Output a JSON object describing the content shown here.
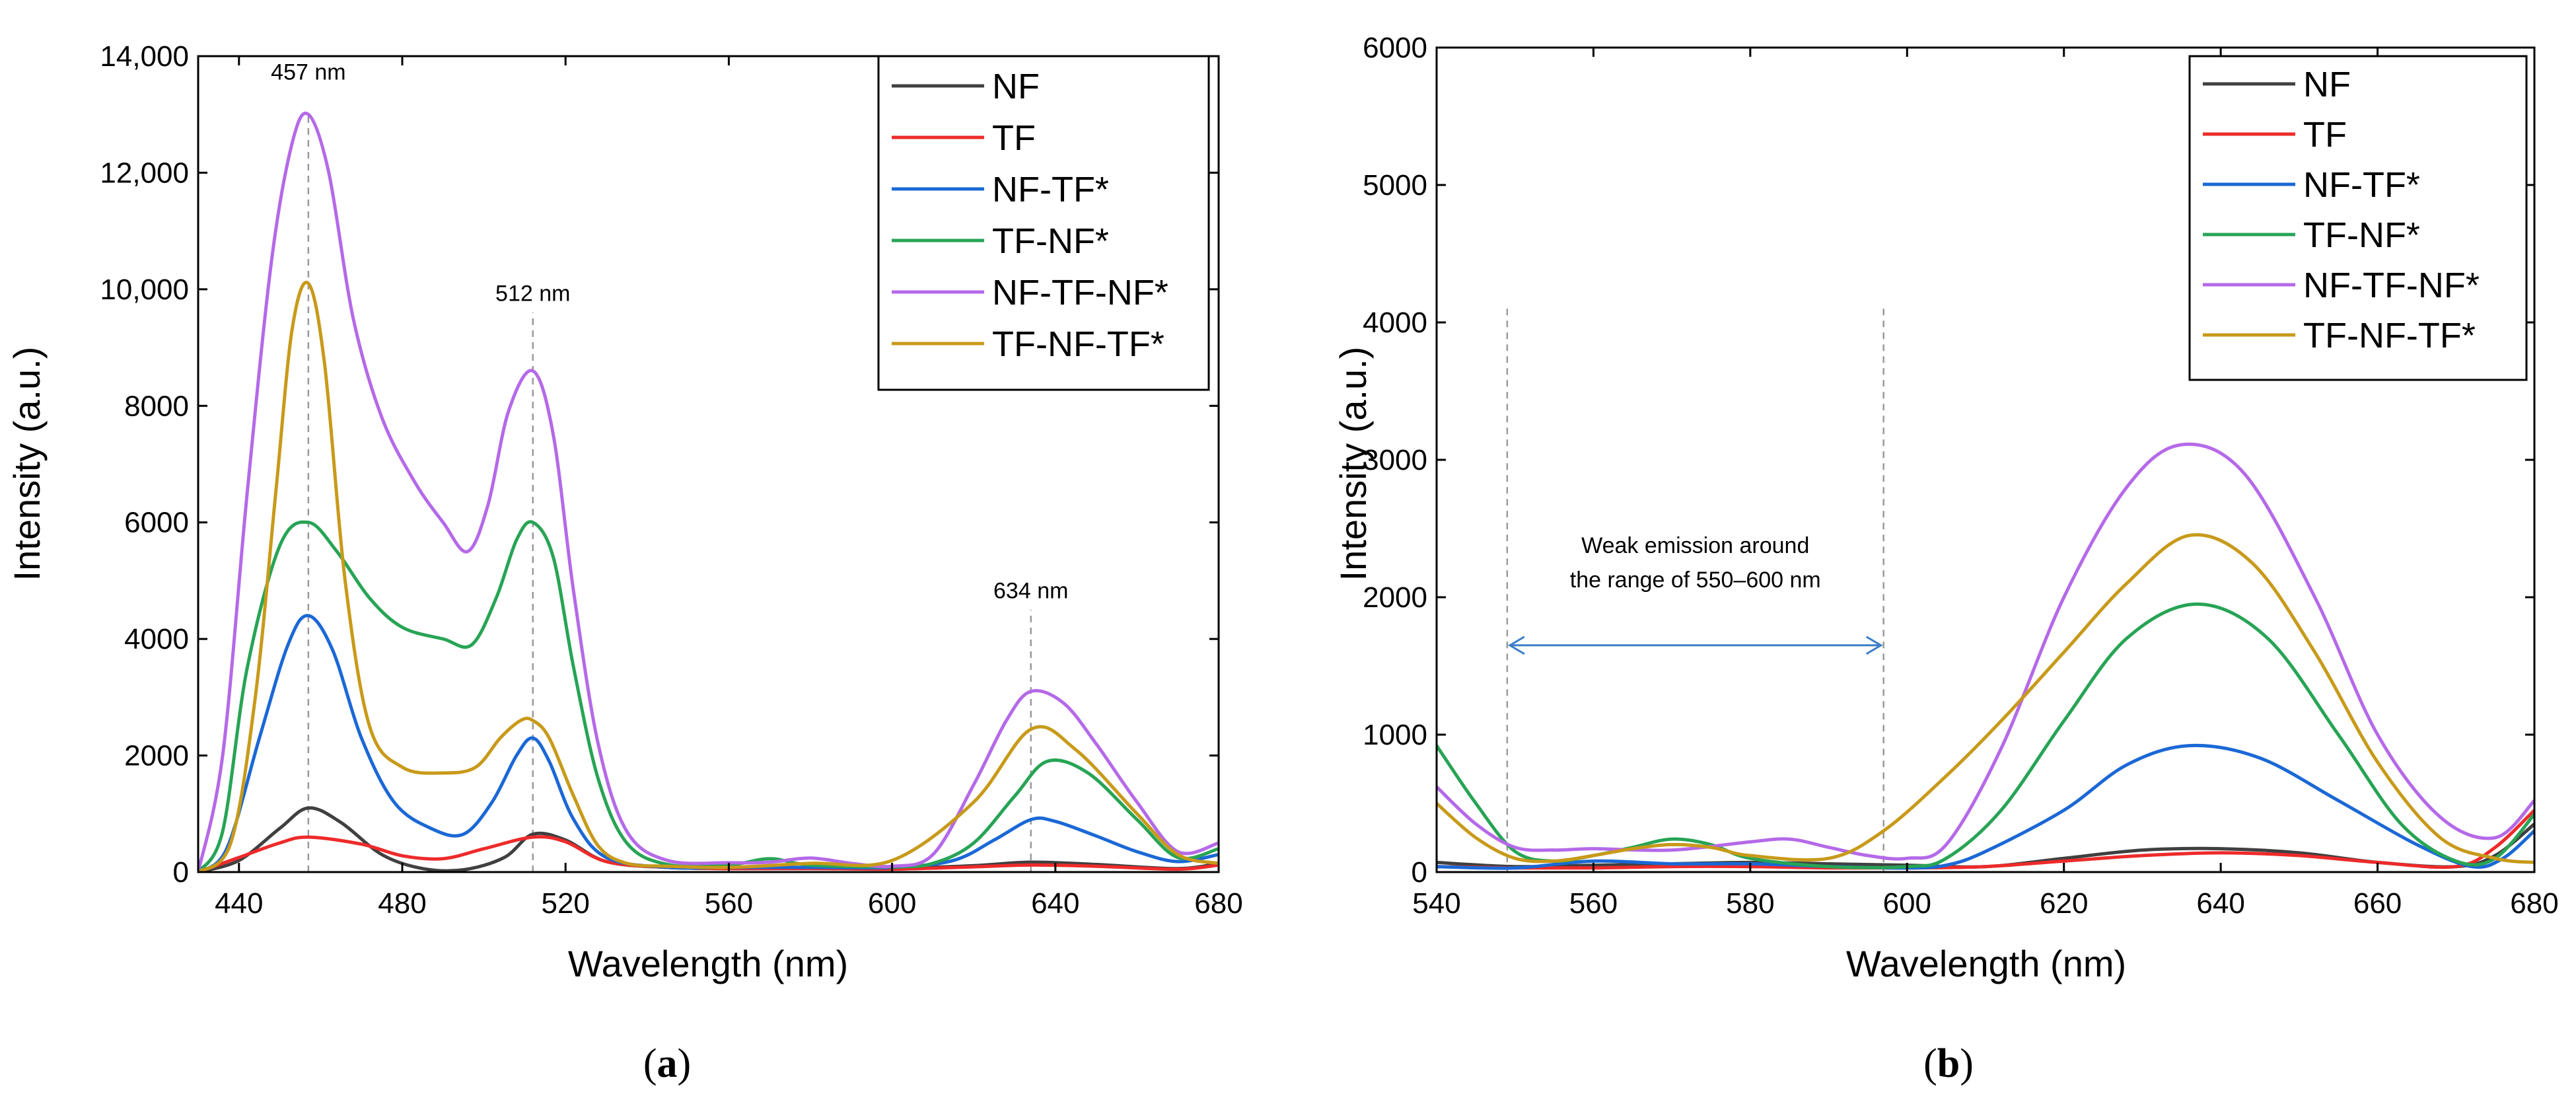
{
  "chart_data": [
    {
      "id": "a",
      "type": "line",
      "panel_label": [
        "(",
        "a",
        ")"
      ],
      "xlabel": "Wavelength (nm)",
      "ylabel": "Intensity (a.u.)",
      "xlim": [
        430,
        680
      ],
      "ylim": [
        0,
        14000
      ],
      "x_ticks": [
        440,
        480,
        520,
        560,
        600,
        640,
        680
      ],
      "y_ticks": [
        0,
        2000,
        4000,
        6000,
        8000,
        10000,
        12000,
        14000
      ],
      "y_tick_labels": [
        "0",
        "2000",
        "4000",
        "6000",
        "8000",
        "10,000",
        "12,000",
        "14,000"
      ],
      "legend_position": "top-right",
      "annotations": [
        {
          "text": "457 nm",
          "x": 457,
          "label_y": 13600,
          "line_from": 0,
          "line_to": 13000
        },
        {
          "text": "512 nm",
          "x": 512,
          "label_y": 9800,
          "line_from": 0,
          "line_to": 9600
        },
        {
          "text": "634 nm",
          "x": 634,
          "label_y": 4700,
          "line_from": 0,
          "line_to": 4500
        }
      ],
      "series": [
        {
          "name": "NF",
          "color": "#404040",
          "x": [
            430,
            440,
            450,
            457,
            465,
            475,
            485,
            495,
            505,
            512,
            520,
            530,
            545,
            560,
            580,
            600,
            620,
            634,
            650,
            670,
            680
          ],
          "y": [
            0,
            200,
            750,
            1100,
            850,
            300,
            60,
            40,
            250,
            650,
            550,
            180,
            80,
            60,
            60,
            60,
            110,
            170,
            130,
            60,
            150
          ]
        },
        {
          "name": "TF",
          "color": "#ee2a2a",
          "x": [
            430,
            440,
            450,
            457,
            470,
            480,
            490,
            500,
            512,
            520,
            530,
            545,
            560,
            580,
            600,
            620,
            634,
            650,
            670,
            680
          ],
          "y": [
            0,
            250,
            500,
            600,
            480,
            280,
            230,
            400,
            600,
            520,
            180,
            80,
            60,
            60,
            50,
            90,
            120,
            100,
            50,
            120
          ]
        },
        {
          "name": "NF-TF*",
          "color": "#1b68d6",
          "x": [
            430,
            437,
            445,
            452,
            457,
            463,
            470,
            478,
            487,
            495,
            502,
            508,
            512,
            516,
            522,
            530,
            545,
            560,
            580,
            600,
            615,
            625,
            634,
            640,
            650,
            660,
            670,
            680
          ],
          "y": [
            0,
            400,
            2300,
            3900,
            4400,
            3800,
            2300,
            1200,
            750,
            650,
            1200,
            2000,
            2300,
            1900,
            900,
            250,
            80,
            80,
            80,
            80,
            200,
            550,
            900,
            870,
            620,
            350,
            180,
            300
          ]
        },
        {
          "name": "TF-NF*",
          "color": "#27a455",
          "x": [
            430,
            436,
            442,
            450,
            457,
            464,
            472,
            480,
            490,
            497,
            503,
            508,
            512,
            517,
            522,
            528,
            535,
            545,
            560,
            570,
            580,
            600,
            610,
            620,
            630,
            638,
            648,
            660,
            670,
            680
          ],
          "y": [
            0,
            700,
            3500,
            5600,
            6000,
            5500,
            4700,
            4200,
            4000,
            3900,
            4700,
            5700,
            6000,
            5400,
            3500,
            1600,
            500,
            130,
            120,
            230,
            120,
            90,
            150,
            500,
            1300,
            1900,
            1700,
            900,
            250,
            400
          ]
        },
        {
          "name": "NF-TF-NF*",
          "color": "#b569e8",
          "x": [
            430,
            436,
            442,
            448,
            453,
            457,
            462,
            468,
            475,
            483,
            490,
            496,
            501,
            506,
            512,
            517,
            522,
            528,
            535,
            545,
            560,
            570,
            580,
            590,
            600,
            610,
            620,
            628,
            634,
            642,
            650,
            660,
            670,
            680
          ],
          "y": [
            0,
            2000,
            6500,
            10500,
            12500,
            13000,
            12000,
            9500,
            7800,
            6700,
            6000,
            5500,
            6300,
            7900,
            8600,
            7500,
            4800,
            2200,
            700,
            200,
            160,
            170,
            240,
            150,
            100,
            300,
            1500,
            2600,
            3100,
            2900,
            2200,
            1200,
            350,
            500
          ]
        },
        {
          "name": "TF-NF-TF*",
          "color": "#c89a1a",
          "x": [
            430,
            438,
            444,
            449,
            453,
            457,
            461,
            466,
            472,
            480,
            490,
            498,
            504,
            509,
            512,
            516,
            522,
            528,
            535,
            545,
            560,
            580,
            600,
            620,
            634,
            645,
            660,
            670,
            680
          ],
          "y": [
            0,
            500,
            3000,
            6500,
            9300,
            10100,
            8700,
            5000,
            2500,
            1800,
            1700,
            1800,
            2300,
            2600,
            2600,
            2300,
            1300,
            450,
            150,
            100,
            80,
            150,
            200,
            1200,
            2450,
            2100,
            1000,
            300,
            150
          ]
        }
      ]
    },
    {
      "id": "b",
      "type": "line",
      "panel_label": [
        "(",
        "b",
        ")"
      ],
      "xlabel": "Wavelength (nm)",
      "ylabel": "Intensity (a.u.)",
      "xlim": [
        540,
        680
      ],
      "ylim": [
        0,
        6000
      ],
      "x_ticks": [
        540,
        560,
        580,
        600,
        620,
        640,
        660,
        680
      ],
      "y_ticks": [
        0,
        1000,
        2000,
        3000,
        4000,
        5000,
        6000
      ],
      "y_tick_labels": [
        "0",
        "1000",
        "2000",
        "3000",
        "4000",
        "5000",
        "6000"
      ],
      "legend_position": "top-right",
      "range_annotation": {
        "lines": [
          "Weak emission around",
          "the range of 550–600 nm"
        ],
        "x_start": 549,
        "x_end": 597,
        "arrow_y": 1650,
        "line_top": 4100
      },
      "series": [
        {
          "name": "NF",
          "color": "#404040",
          "x": [
            540,
            550,
            560,
            570,
            580,
            590,
            600,
            610,
            620,
            630,
            640,
            650,
            660,
            670,
            675,
            680
          ],
          "y": [
            70,
            40,
            50,
            60,
            70,
            60,
            50,
            40,
            100,
            160,
            170,
            140,
            70,
            40,
            120,
            350
          ]
        },
        {
          "name": "TF",
          "color": "#ee2a2a",
          "x": [
            540,
            550,
            560,
            570,
            580,
            590,
            600,
            610,
            620,
            630,
            640,
            650,
            660,
            670,
            675,
            680
          ],
          "y": [
            40,
            30,
            30,
            40,
            40,
            30,
            30,
            40,
            80,
            120,
            140,
            120,
            70,
            40,
            180,
            450
          ]
        },
        {
          "name": "NF-TF*",
          "color": "#1b68d6",
          "x": [
            540,
            550,
            560,
            570,
            580,
            590,
            600,
            605,
            610,
            620,
            628,
            636,
            645,
            655,
            665,
            672,
            676,
            680
          ],
          "y": [
            40,
            30,
            80,
            60,
            60,
            40,
            30,
            50,
            150,
            450,
            780,
            920,
            830,
            520,
            200,
            40,
            100,
            300
          ]
        },
        {
          "name": "TF-NF*",
          "color": "#27a455",
          "x": [
            540,
            545,
            550,
            555,
            560,
            565,
            570,
            575,
            580,
            590,
            600,
            605,
            612,
            620,
            628,
            637,
            646,
            655,
            663,
            670,
            675,
            680
          ],
          "y": [
            920,
            500,
            150,
            80,
            120,
            180,
            240,
            200,
            100,
            40,
            40,
            100,
            450,
            1100,
            1700,
            1950,
            1700,
            1000,
            350,
            80,
            100,
            420
          ]
        },
        {
          "name": "NF-TF-NF*",
          "color": "#b569e8",
          "x": [
            540,
            545,
            550,
            555,
            560,
            570,
            580,
            585,
            590,
            595,
            600,
            605,
            612,
            620,
            628,
            635,
            643,
            652,
            660,
            668,
            675,
            680
          ],
          "y": [
            620,
            350,
            180,
            160,
            170,
            160,
            220,
            240,
            180,
            120,
            100,
            200,
            900,
            2000,
            2800,
            3110,
            2900,
            2000,
            1000,
            400,
            250,
            520
          ]
        },
        {
          "name": "TF-NF-TF*",
          "color": "#c89a1a",
          "x": [
            540,
            545,
            550,
            555,
            560,
            565,
            570,
            575,
            580,
            590,
            597,
            605,
            612,
            620,
            628,
            636,
            644,
            652,
            660,
            668,
            675,
            680
          ],
          "y": [
            500,
            250,
            100,
            80,
            120,
            170,
            200,
            180,
            120,
            100,
            300,
            700,
            1100,
            1600,
            2100,
            2450,
            2250,
            1600,
            800,
            250,
            100,
            70
          ]
        }
      ]
    }
  ]
}
